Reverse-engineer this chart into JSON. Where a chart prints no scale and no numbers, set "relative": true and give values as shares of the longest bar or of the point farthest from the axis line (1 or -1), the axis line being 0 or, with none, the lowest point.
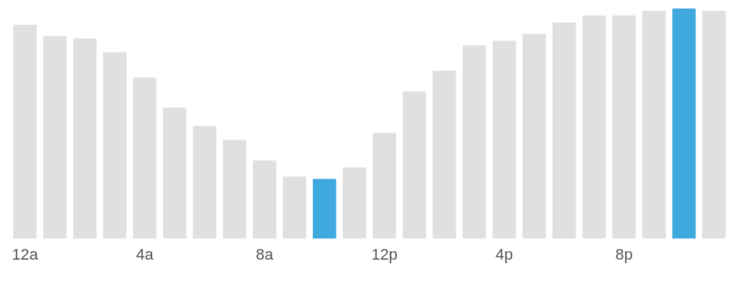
{
  "chart_data": {
    "type": "bar",
    "relative": true,
    "categories": [
      "12a",
      null,
      null,
      null,
      "4a",
      null,
      null,
      null,
      "8a",
      null,
      null,
      null,
      "12p",
      null,
      null,
      null,
      "4p",
      null,
      null,
      null,
      "8p",
      null,
      null,
      null
    ],
    "values": [
      0.93,
      0.88,
      0.87,
      0.81,
      0.7,
      0.57,
      0.49,
      0.43,
      0.34,
      0.27,
      0.26,
      0.31,
      0.46,
      0.64,
      0.73,
      0.84,
      0.86,
      0.89,
      0.94,
      0.97,
      0.97,
      0.99,
      1,
      0.99
    ],
    "colors": [
      "#e0e0e0",
      "#e0e0e0",
      "#e0e0e0",
      "#e0e0e0",
      "#e0e0e0",
      "#e0e0e0",
      "#e0e0e0",
      "#e0e0e0",
      "#e0e0e0",
      "#e0e0e0",
      "#3fa9dd",
      "#e0e0e0",
      "#e0e0e0",
      "#e0e0e0",
      "#e0e0e0",
      "#e0e0e0",
      "#e0e0e0",
      "#e0e0e0",
      "#e0e0e0",
      "#e0e0e0",
      "#e0e0e0",
      "#e0e0e0",
      "#3fa9dd",
      "#e0e0e0"
    ],
    "grid": false,
    "legend": false
  }
}
